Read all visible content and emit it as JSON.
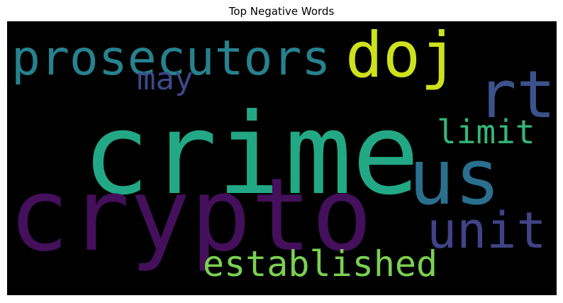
{
  "chart_data": {
    "type": "wordcloud",
    "title": "Top Negative Words",
    "background": "#000000",
    "words": [
      {
        "text": "crime",
        "weight": 1.0,
        "color": "#22a884"
      },
      {
        "text": "crypto",
        "weight": 0.9,
        "color": "#440f5b"
      },
      {
        "text": "us",
        "weight": 0.68,
        "color": "#2b6f8e"
      },
      {
        "text": "rt",
        "weight": 0.58,
        "color": "#3b528b"
      },
      {
        "text": "doj",
        "weight": 0.56,
        "color": "#cde11d"
      },
      {
        "text": "unit",
        "weight": 0.44,
        "color": "#404387"
      },
      {
        "text": "prosecutors",
        "weight": 0.43,
        "color": "#26828e"
      },
      {
        "text": "established",
        "weight": 0.32,
        "color": "#7ad151"
      },
      {
        "text": "limit",
        "weight": 0.3,
        "color": "#35b779"
      },
      {
        "text": "may",
        "weight": 0.28,
        "color": "#3e4989"
      }
    ]
  }
}
